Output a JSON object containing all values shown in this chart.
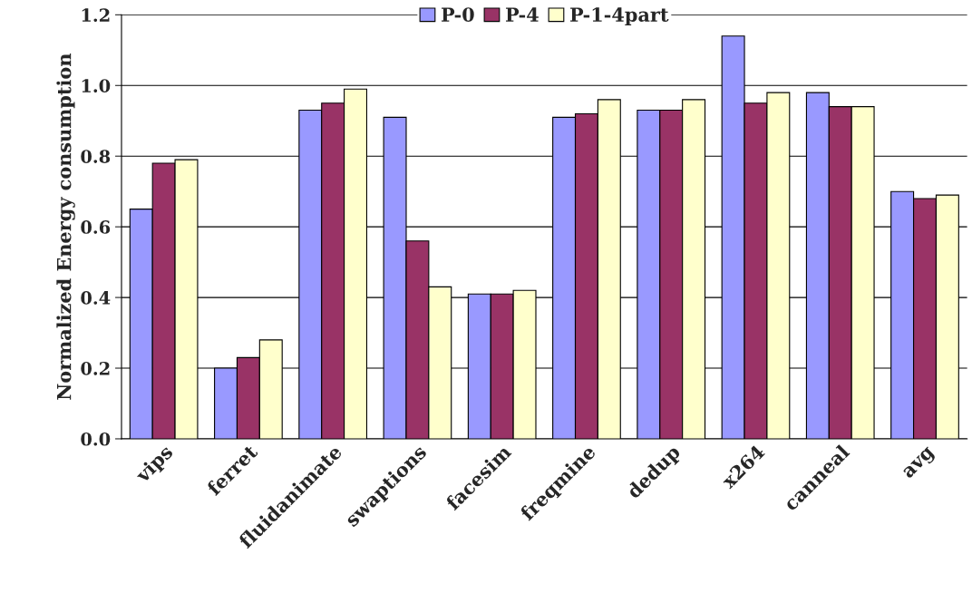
{
  "chart_data": {
    "type": "bar",
    "ylabel": "Normalized Energy consumption",
    "categories": [
      "vips",
      "ferret",
      "fluidanimate",
      "swaptions",
      "facesim",
      "freqmine",
      "dedup",
      "x264",
      "canneal",
      "avg"
    ],
    "series": [
      {
        "name": "P-0",
        "color": "#9999ff",
        "values": [
          0.65,
          0.2,
          0.93,
          0.91,
          0.41,
          0.91,
          0.93,
          1.14,
          0.98,
          0.7
        ]
      },
      {
        "name": "P-4",
        "color": "#993366",
        "values": [
          0.78,
          0.23,
          0.95,
          0.56,
          0.41,
          0.92,
          0.93,
          0.95,
          0.94,
          0.68
        ]
      },
      {
        "name": "P-1-4part",
        "color": "#ffffcc",
        "values": [
          0.79,
          0.28,
          0.99,
          0.43,
          0.42,
          0.96,
          0.96,
          0.98,
          0.94,
          0.69
        ]
      }
    ],
    "ylim": [
      0,
      1.2
    ],
    "yticks": [
      {
        "value": 0,
        "label": "0.0"
      },
      0.2,
      0.4,
      0.6,
      0.8,
      {
        "value": 1.0,
        "label": "1.0"
      },
      1.2
    ],
    "grid": "y",
    "legend": "top"
  }
}
